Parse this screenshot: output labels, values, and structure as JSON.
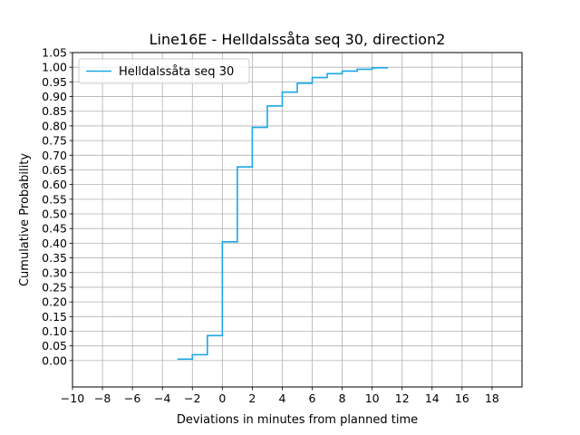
{
  "chart_data": {
    "type": "line",
    "step": true,
    "title": "Line16E - Helldalssåta seq 30, direction2",
    "xlabel": "Deviations in minutes from planned time",
    "ylabel": "Cumulative Probability",
    "xlim": [
      -10,
      20
    ],
    "ylim": [
      -0.09,
      1.05
    ],
    "xticks": [
      -10,
      -8,
      -6,
      -4,
      -2,
      0,
      2,
      4,
      6,
      8,
      10,
      12,
      14,
      16,
      18
    ],
    "xtick_labels": [
      "−10",
      "−8",
      "−6",
      "−4",
      "−2",
      "0",
      "2",
      "4",
      "6",
      "8",
      "10",
      "12",
      "14",
      "16",
      "18"
    ],
    "yticks": [
      0.0,
      0.05,
      0.1,
      0.15,
      0.2,
      0.25,
      0.3,
      0.35,
      0.4,
      0.45,
      0.5,
      0.55,
      0.6,
      0.65,
      0.7,
      0.75,
      0.8,
      0.85,
      0.9,
      0.95,
      1.0,
      1.05
    ],
    "ytick_labels": [
      "0.00",
      "0.05",
      "0.10",
      "0.15",
      "0.20",
      "0.25",
      "0.30",
      "0.35",
      "0.40",
      "0.45",
      "0.50",
      "0.55",
      "0.60",
      "0.65",
      "0.70",
      "0.75",
      "0.80",
      "0.85",
      "0.90",
      "0.95",
      "1.00",
      "1.05"
    ],
    "grid": true,
    "legend_position": "top-left",
    "series": [
      {
        "name": "Helldalssåta seq 30",
        "color": "#1aa7e8",
        "x": [
          -3,
          -2,
          -1,
          0,
          1,
          2,
          3,
          4,
          5,
          6,
          7,
          8,
          9,
          10,
          11
        ],
        "y": [
          0.005,
          0.02,
          0.085,
          0.405,
          0.66,
          0.795,
          0.868,
          0.915,
          0.945,
          0.965,
          0.978,
          0.987,
          0.993,
          0.998,
          1.0
        ]
      }
    ]
  }
}
